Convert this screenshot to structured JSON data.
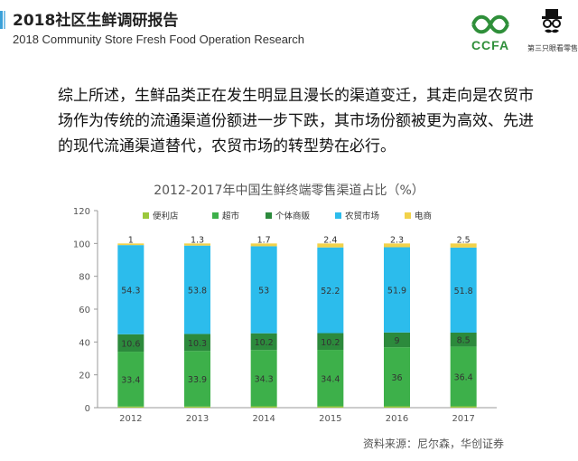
{
  "header": {
    "title_cn": "2018社区生鲜调研报告",
    "title_en": "2018 Community Store Fresh Food Operation Research",
    "logo_ccfa": "CCFA",
    "logo_right": "第三只眼看零售"
  },
  "intro_text": "综上所述，生鲜品类正在发生明显且漫长的渠道变迁，其走向是农贸市场作为传统的流通渠道份额进一步下跌，其市场份额被更为高效、先进的现代流通渠道替代，农贸市场的转型势在必行。",
  "source": "资料来源：尼尔森，华创证券",
  "colors": {
    "convenience": "#9bc83c",
    "supermarket": "#3db04a",
    "individual": "#2c8a3c",
    "wet_market": "#2cbcec",
    "ecommerce": "#f2d24a",
    "accent": "#3aa0d8"
  },
  "chart_data": {
    "type": "bar",
    "stacked": true,
    "title": "2012-2017年中国生鲜终端零售渠道占比（%）",
    "categories": [
      "2012",
      "2013",
      "2014",
      "2015",
      "2016",
      "2017"
    ],
    "series": [
      {
        "name": "便利店",
        "values": [
          0.7,
          0.7,
          0.8,
          0.8,
          0.8,
          0.8
        ]
      },
      {
        "name": "超市",
        "values": [
          33.4,
          33.9,
          34.3,
          34.4,
          36,
          36.4
        ]
      },
      {
        "name": "个体商贩",
        "values": [
          10.6,
          10.3,
          10.2,
          10.2,
          9,
          8.5
        ]
      },
      {
        "name": "农贸市场",
        "values": [
          54.3,
          53.8,
          53,
          52.2,
          51.9,
          51.8
        ]
      },
      {
        "name": "电商",
        "values": [
          1,
          1.3,
          1.7,
          2.4,
          2.3,
          2.5
        ]
      }
    ],
    "ylim": [
      0,
      120
    ],
    "yticks": [
      0,
      20,
      40,
      60,
      80,
      100,
      120
    ],
    "legend_position": "top",
    "grid": false
  }
}
